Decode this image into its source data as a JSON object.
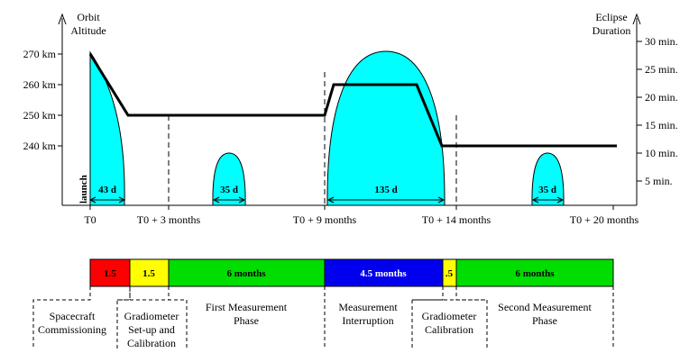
{
  "left_axis": {
    "title_line1": "Orbit",
    "title_line2": "Altitude",
    "ticks": [
      "270 km",
      "260 km",
      "250 km",
      "240 km"
    ]
  },
  "right_axis": {
    "title_line1": "Eclipse",
    "title_line2": "Duration",
    "ticks": [
      "30 min.",
      "25 min.",
      "20 min.",
      "15 min.",
      "10 min.",
      "5 min."
    ]
  },
  "x_axis": {
    "ticks": [
      "T0",
      "T0 + 3 months",
      "T0 + 9 months",
      "T0 + 14 months",
      "T0 + 20 months"
    ]
  },
  "launch_label": "launch",
  "eclipse_seasons": [
    {
      "duration_label": "43 d"
    },
    {
      "duration_label": "35 d"
    },
    {
      "duration_label": "135 d"
    },
    {
      "duration_label": "35 d"
    }
  ],
  "phase_bar": [
    {
      "label": "1.5",
      "color": "#ff0000"
    },
    {
      "label": "1.5",
      "color": "#ffff00"
    },
    {
      "label": "6 months",
      "color": "#00dd00"
    },
    {
      "label": "4.5 months",
      "color": "#0000ee"
    },
    {
      "label": ".5",
      "color": "#ffff00"
    },
    {
      "label": "6 months",
      "color": "#00dd00"
    }
  ],
  "phase_labels": [
    {
      "line1": "Spacecraft",
      "line2": "Commissioning",
      "line3": ""
    },
    {
      "line1": "Gradiometer",
      "line2": "Set-up and",
      "line3": "Calibration"
    },
    {
      "line1": "First Measurement",
      "line2": "Phase",
      "line3": ""
    },
    {
      "line1": "Measurement",
      "line2": "Interruption",
      "line3": ""
    },
    {
      "line1": "Gradiometer",
      "line2": "Calibration",
      "line3": ""
    },
    {
      "line1": "Second Measurement",
      "line2": "Phase",
      "line3": ""
    }
  ],
  "colors": {
    "eclipse_fill": "#00ffff",
    "altitude_line": "#000000"
  }
}
